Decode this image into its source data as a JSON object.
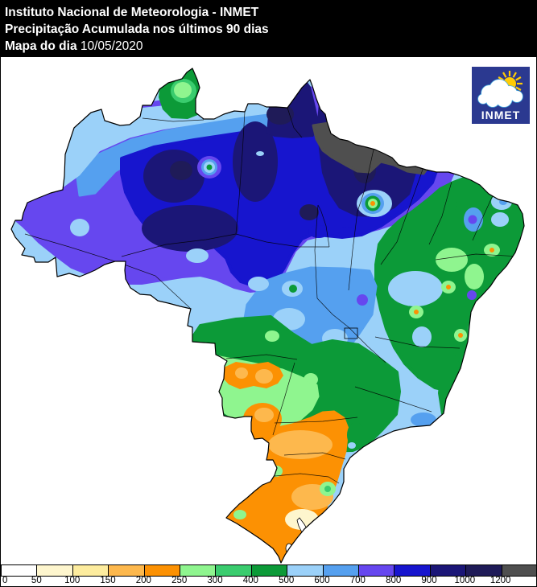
{
  "header": {
    "bg": "#000000",
    "fg": "#FFFFFF",
    "line1": "Instituto Nacional de Meteorologia - INMET",
    "line2": "Precipitação Acumulada nos últimos 90 dias",
    "line3_label": "Mapa do dia ",
    "date": "10/05/2020"
  },
  "logo": {
    "text": "INMET",
    "bg": "#2B3990",
    "sun_color": "#FFCB05",
    "cloud_outline": "#45AEE4",
    "cloud_fill": "#FFFFFF",
    "text_color": "#FFFFFF"
  },
  "colorbar": {
    "labels": [
      "0",
      "50",
      "100",
      "150",
      "200",
      "250",
      "300",
      "400",
      "500",
      "600",
      "700",
      "800",
      "900",
      "1000",
      "1200"
    ],
    "colors": [
      "#FFFFFF",
      "#FEF6CE",
      "#FDEC9E",
      "#FDB84D",
      "#FC9103",
      "#8FF58F",
      "#3ACC6E",
      "#0C9A38",
      "#9BD1F9",
      "#55A0EF",
      "#6647EF",
      "#1715CE",
      "#1B1677",
      "#1F1B58",
      "#4F4F4F"
    ],
    "border_color": "#000000",
    "label_color": "#000000"
  },
  "map": {
    "background": "#FFFFFF",
    "outline_color": "#000000"
  }
}
